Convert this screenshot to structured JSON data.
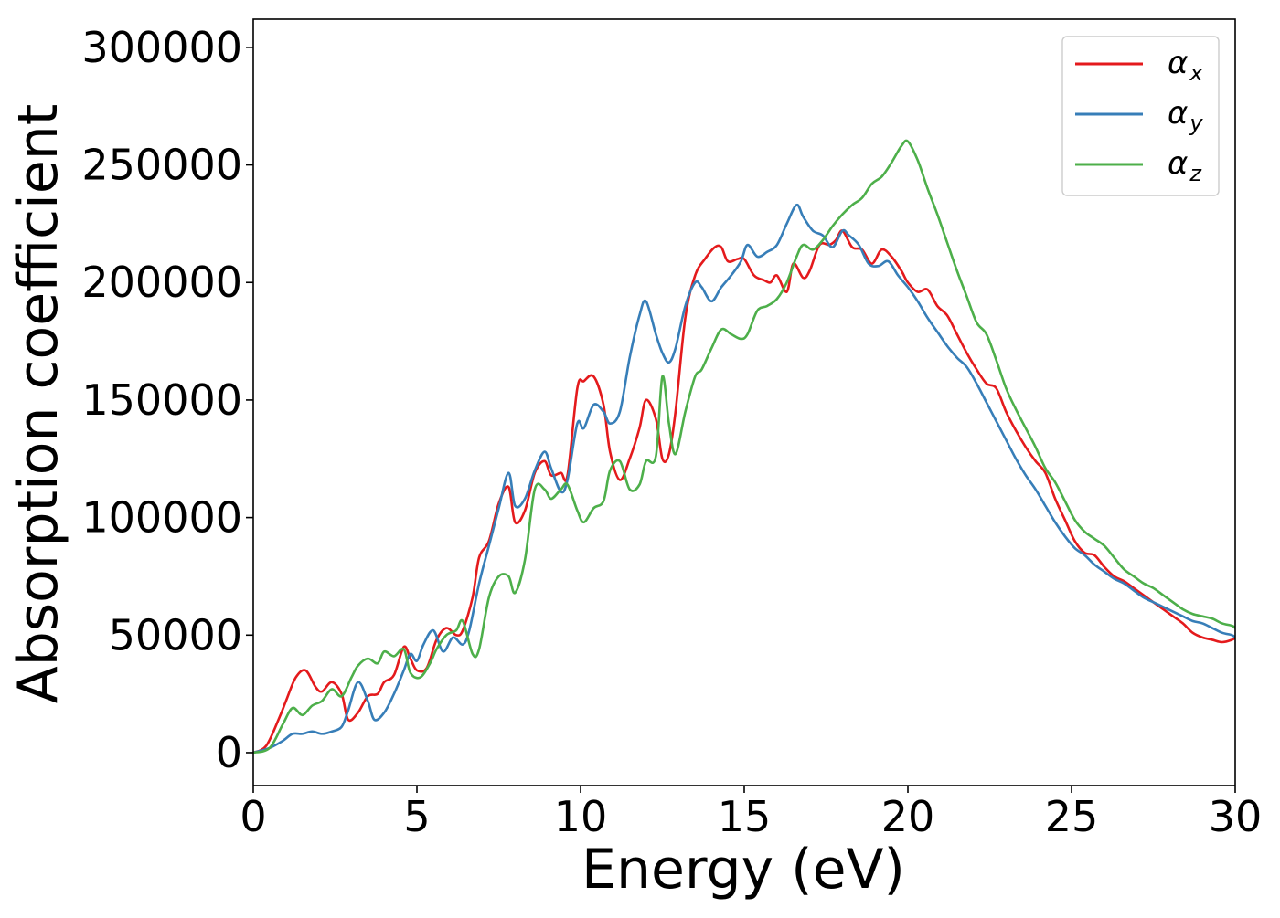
{
  "chart_data": {
    "type": "line",
    "xlabel": "Energy (eV)",
    "ylabel": "Absorption coefficient",
    "xlim": [
      0,
      30
    ],
    "ylim": [
      -14000,
      312000
    ],
    "xticks": [
      0,
      5,
      10,
      15,
      20,
      25,
      30
    ],
    "xtick_labels": [
      "0",
      "5",
      "10",
      "15",
      "20",
      "25",
      "30"
    ],
    "yticks": [
      0,
      50000,
      100000,
      150000,
      200000,
      250000,
      300000
    ],
    "ytick_labels": [
      "0",
      "50000",
      "100000",
      "150000",
      "200000",
      "250000",
      "300000"
    ],
    "grid": false,
    "legend_position": "top-right",
    "series": [
      {
        "name": "αx",
        "legend_main": "α",
        "legend_sub": "x",
        "color": "#e41a1c",
        "x": [
          0,
          0.4,
          0.8,
          1.0,
          1.3,
          1.6,
          1.9,
          2.1,
          2.4,
          2.7,
          2.9,
          3.2,
          3.5,
          3.8,
          4.0,
          4.3,
          4.6,
          4.8,
          5.0,
          5.3,
          5.6,
          5.9,
          6.2,
          6.4,
          6.7,
          6.9,
          7.2,
          7.5,
          7.8,
          8.0,
          8.3,
          8.6,
          8.9,
          9.1,
          9.4,
          9.6,
          9.9,
          10.1,
          10.4,
          10.7,
          10.9,
          11.2,
          11.5,
          11.8,
          12.0,
          12.3,
          12.5,
          12.7,
          12.9,
          13.2,
          13.5,
          13.8,
          14.1,
          14.3,
          14.5,
          14.8,
          15.0,
          15.3,
          15.6,
          15.8,
          16.0,
          16.3,
          16.5,
          16.8,
          17.0,
          17.3,
          17.6,
          17.8,
          18.0,
          18.3,
          18.6,
          18.9,
          19.2,
          19.5,
          19.8,
          20.0,
          20.3,
          20.6,
          20.9,
          21.2,
          21.5,
          21.8,
          22.1,
          22.4,
          22.7,
          23.0,
          23.3,
          23.6,
          23.9,
          24.2,
          24.5,
          24.8,
          25.1,
          25.4,
          25.7,
          26.0,
          26.3,
          26.6,
          26.9,
          27.2,
          27.5,
          27.8,
          28.1,
          28.4,
          28.7,
          29.0,
          29.3,
          29.6,
          29.9,
          30
        ],
        "y": [
          0,
          3000,
          15000,
          22000,
          32000,
          35000,
          28000,
          26000,
          30000,
          25000,
          14000,
          17000,
          24000,
          25000,
          30000,
          33000,
          45000,
          40000,
          35000,
          36000,
          48000,
          53000,
          50000,
          52000,
          66000,
          83000,
          90000,
          106000,
          113000,
          98000,
          103000,
          119000,
          124000,
          118000,
          119000,
          118000,
          155000,
          158000,
          160000,
          148000,
          128000,
          116000,
          125000,
          138000,
          150000,
          142000,
          125000,
          127000,
          145000,
          185000,
          203000,
          210000,
          215000,
          215000,
          209000,
          210000,
          210000,
          203000,
          201000,
          200000,
          203000,
          196000,
          208000,
          202000,
          205000,
          216000,
          216000,
          218000,
          222000,
          215000,
          214000,
          208000,
          214000,
          211000,
          205000,
          200000,
          196000,
          197000,
          190000,
          186000,
          178000,
          170000,
          163000,
          157000,
          155000,
          145000,
          137000,
          130000,
          124000,
          119000,
          108000,
          99000,
          90000,
          85000,
          84000,
          79000,
          75000,
          73000,
          70000,
          67000,
          64000,
          61000,
          58000,
          55000,
          51000,
          49000,
          48000,
          47000,
          48000,
          49000
        ],
        "y_fix": true
      },
      {
        "name": "αy",
        "legend_main": "α",
        "legend_sub": "y",
        "color": "#377eb8",
        "x": [
          0,
          0.5,
          0.9,
          1.2,
          1.5,
          1.8,
          2.1,
          2.4,
          2.7,
          2.9,
          3.2,
          3.5,
          3.7,
          4.0,
          4.3,
          4.6,
          4.8,
          5.0,
          5.2,
          5.5,
          5.8,
          6.1,
          6.4,
          6.6,
          6.9,
          7.2,
          7.5,
          7.8,
          8.0,
          8.3,
          8.6,
          8.9,
          9.1,
          9.4,
          9.6,
          9.9,
          10.1,
          10.4,
          10.7,
          10.9,
          11.2,
          11.5,
          11.8,
          12.0,
          12.3,
          12.5,
          12.7,
          12.9,
          13.2,
          13.5,
          13.7,
          14.0,
          14.3,
          14.6,
          14.9,
          15.1,
          15.4,
          15.7,
          16.0,
          16.3,
          16.6,
          16.8,
          17.1,
          17.4,
          17.7,
          18.0,
          18.2,
          18.5,
          18.8,
          19.1,
          19.4,
          19.7,
          20.0,
          20.3,
          20.6,
          20.9,
          21.2,
          21.5,
          21.8,
          22.1,
          22.4,
          22.7,
          23.0,
          23.3,
          23.6,
          23.9,
          24.2,
          24.5,
          24.8,
          25.1,
          25.4,
          25.7,
          26.0,
          26.3,
          26.6,
          26.9,
          27.2,
          27.5,
          27.8,
          28.1,
          28.4,
          28.7,
          29.0,
          29.3,
          29.6,
          29.9,
          30
        ],
        "y": [
          0,
          2000,
          5000,
          8000,
          8000,
          9000,
          8000,
          9000,
          11000,
          18000,
          30000,
          22000,
          14000,
          17000,
          25000,
          35000,
          42000,
          39000,
          46000,
          52000,
          43000,
          49000,
          46000,
          52000,
          72000,
          88000,
          104000,
          119000,
          105000,
          108000,
          120000,
          128000,
          121000,
          111000,
          116000,
          140000,
          138000,
          148000,
          145000,
          140000,
          145000,
          168000,
          186000,
          192000,
          178000,
          170000,
          166000,
          172000,
          190000,
          200000,
          198000,
          192000,
          198000,
          203000,
          209000,
          216000,
          211000,
          213000,
          216000,
          225000,
          233000,
          228000,
          222000,
          220000,
          215000,
          222000,
          220000,
          216000,
          208000,
          207000,
          209000,
          203000,
          198000,
          192000,
          185000,
          179000,
          173000,
          168000,
          164000,
          157000,
          149000,
          141000,
          133000,
          125000,
          118000,
          112000,
          105000,
          98000,
          92000,
          87000,
          84000,
          80000,
          77000,
          74000,
          72000,
          69000,
          66000,
          64000,
          62000,
          60000,
          58000,
          56000,
          55000,
          53000,
          51000,
          50000,
          49000
        ]
      },
      {
        "name": "αz",
        "legend_main": "α",
        "legend_sub": "z",
        "color": "#4daf4a",
        "x": [
          0,
          0.5,
          0.9,
          1.2,
          1.5,
          1.8,
          2.1,
          2.4,
          2.7,
          3.0,
          3.2,
          3.5,
          3.8,
          4.0,
          4.3,
          4.6,
          4.8,
          5.1,
          5.4,
          5.6,
          5.9,
          6.2,
          6.4,
          6.7,
          6.9,
          7.2,
          7.5,
          7.8,
          8.0,
          8.3,
          8.6,
          8.9,
          9.1,
          9.4,
          9.6,
          9.9,
          10.1,
          10.4,
          10.7,
          10.9,
          11.2,
          11.5,
          11.8,
          12.0,
          12.3,
          12.5,
          12.7,
          12.9,
          13.2,
          13.5,
          13.7,
          14.0,
          14.3,
          14.6,
          14.9,
          15.1,
          15.4,
          15.7,
          16.0,
          16.3,
          16.6,
          16.8,
          17.1,
          17.4,
          17.7,
          18.0,
          18.3,
          18.6,
          18.9,
          19.2,
          19.5,
          19.8,
          20.0,
          20.3,
          20.6,
          20.9,
          21.2,
          21.5,
          21.8,
          22.1,
          22.4,
          22.7,
          23.0,
          23.3,
          23.6,
          23.9,
          24.2,
          24.5,
          24.8,
          25.1,
          25.4,
          25.7,
          26.0,
          26.3,
          26.6,
          26.9,
          27.2,
          27.5,
          27.8,
          28.1,
          28.4,
          28.7,
          29.0,
          29.3,
          29.6,
          29.9,
          30
        ],
        "y": [
          0,
          2000,
          12000,
          19000,
          16000,
          20000,
          22000,
          27000,
          24000,
          32000,
          37000,
          40000,
          38000,
          43000,
          41000,
          44000,
          34000,
          32000,
          38000,
          44000,
          50000,
          52000,
          56000,
          42000,
          44000,
          66000,
          75000,
          75000,
          68000,
          82000,
          112000,
          112000,
          108000,
          112000,
          114000,
          103000,
          98000,
          104000,
          107000,
          120000,
          124000,
          112000,
          114000,
          124000,
          126000,
          160000,
          140000,
          127000,
          145000,
          160000,
          163000,
          172000,
          180000,
          178000,
          176000,
          178000,
          188000,
          190000,
          193000,
          200000,
          211000,
          216000,
          214000,
          218000,
          224000,
          229000,
          233000,
          236000,
          242000,
          245000,
          251000,
          258000,
          260000,
          252000,
          240000,
          229000,
          217000,
          205000,
          194000,
          183000,
          178000,
          167000,
          155000,
          146000,
          138000,
          130000,
          121000,
          115000,
          107000,
          99000,
          94000,
          91000,
          88000,
          83000,
          78000,
          75000,
          72000,
          70000,
          67000,
          64000,
          61000,
          59000,
          58000,
          57000,
          55000,
          54000,
          53000
        ]
      }
    ]
  }
}
